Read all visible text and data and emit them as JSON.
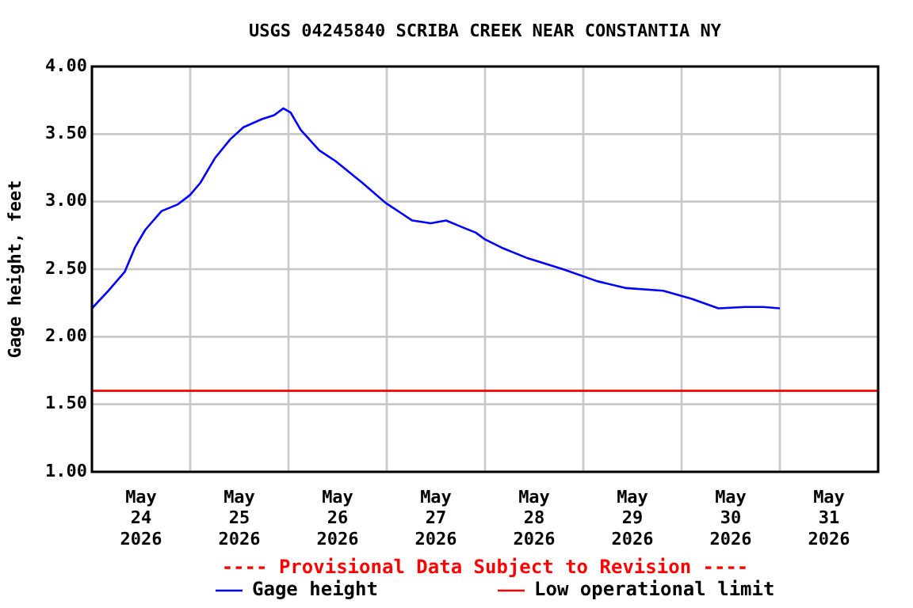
{
  "chart_data": {
    "type": "line",
    "title": "USGS 04245840 SCRIBA CREEK NEAR CONSTANTIA NY",
    "ylabel": "Gage height, feet",
    "annotations": [
      "---- Provisional Data Subject to Revision ----"
    ],
    "series": [
      {
        "name": "Gage height",
        "color": "#0000ff",
        "x": [
          "2026-05-24T00:00",
          "2026-05-24T04:00",
          "2026-05-24T08:00",
          "2026-05-24T10:30",
          "2026-05-24T13:00",
          "2026-05-24T17:00",
          "2026-05-24T21:00",
          "2026-05-25T00:00",
          "2026-05-25T02:30",
          "2026-05-25T06:00",
          "2026-05-25T09:45",
          "2026-05-25T13:00",
          "2026-05-25T17:30",
          "2026-05-25T20:30",
          "2026-05-25T22:45",
          "2026-05-26T00:30",
          "2026-05-26T03:00",
          "2026-05-26T07:30",
          "2026-05-26T11:30",
          "2026-05-26T18:00",
          "2026-05-26T23:45",
          "2026-05-27T06:15",
          "2026-05-27T10:45",
          "2026-05-27T14:30",
          "2026-05-27T18:30",
          "2026-05-27T21:45",
          "2026-05-28T00:00",
          "2026-05-28T04:00",
          "2026-05-28T10:30",
          "2026-05-28T19:00",
          "2026-05-29T03:30",
          "2026-05-29T10:30",
          "2026-05-29T19:30",
          "2026-05-30T02:30",
          "2026-05-30T09:00",
          "2026-05-30T15:30",
          "2026-05-30T20:00",
          "2026-05-31T00:00"
        ],
        "values": [
          2.21,
          2.34,
          2.48,
          2.66,
          2.79,
          2.93,
          2.98,
          3.05,
          3.14,
          3.32,
          3.46,
          3.55,
          3.61,
          3.64,
          3.69,
          3.66,
          3.53,
          3.38,
          3.3,
          3.14,
          2.99,
          2.86,
          2.84,
          2.86,
          2.81,
          2.77,
          2.72,
          2.66,
          2.58,
          2.5,
          2.41,
          2.36,
          2.34,
          2.28,
          2.21,
          2.22,
          2.22,
          2.21
        ]
      }
    ],
    "ref_lines": [
      {
        "axis": "y",
        "value": 1.6,
        "label": "Low operational limit",
        "color": "#ff0000"
      }
    ],
    "xlim": [
      "2026-05-24T00:00",
      "2026-06-01T00:00"
    ],
    "xticks": [
      {
        "value": "2026-05-24T00:00",
        "label": null
      },
      {
        "value": "2026-05-24T12:00",
        "label": "May\n24\n2026"
      },
      {
        "value": "2026-05-25T00:00",
        "label": null
      },
      {
        "value": "2026-05-25T12:00",
        "label": "May\n25\n2026"
      },
      {
        "value": "2026-05-26T00:00",
        "label": null
      },
      {
        "value": "2026-05-26T12:00",
        "label": "May\n26\n2026"
      },
      {
        "value": "2026-05-27T00:00",
        "label": null
      },
      {
        "value": "2026-05-27T12:00",
        "label": "May\n27\n2026"
      },
      {
        "value": "2026-05-28T00:00",
        "label": null
      },
      {
        "value": "2026-05-28T12:00",
        "label": "May\n28\n2026"
      },
      {
        "value": "2026-05-29T00:00",
        "label": null
      },
      {
        "value": "2026-05-29T12:00",
        "label": "May\n29\n2026"
      },
      {
        "value": "2026-05-30T00:00",
        "label": null
      },
      {
        "value": "2026-05-30T12:00",
        "label": "May\n30\n2026"
      },
      {
        "value": "2026-05-31T00:00",
        "label": null
      },
      {
        "value": "2026-05-31T12:00",
        "label": "May\n31\n2026"
      },
      {
        "value": "2026-06-01T00:00",
        "label": null
      }
    ],
    "ylim": [
      1,
      4
    ],
    "yticks": [
      {
        "value": 1,
        "label": "1.00"
      },
      {
        "value": 1.5,
        "label": "1.50"
      },
      {
        "value": 2,
        "label": "2.00"
      },
      {
        "value": 2.5,
        "label": "2.50"
      },
      {
        "value": 3,
        "label": "3.00"
      },
      {
        "value": 3.5,
        "label": "3.50"
      },
      {
        "value": 4,
        "label": "4.00"
      }
    ],
    "grid": true,
    "legend": "bottom",
    "marker": "none",
    "line_style": "solid"
  }
}
